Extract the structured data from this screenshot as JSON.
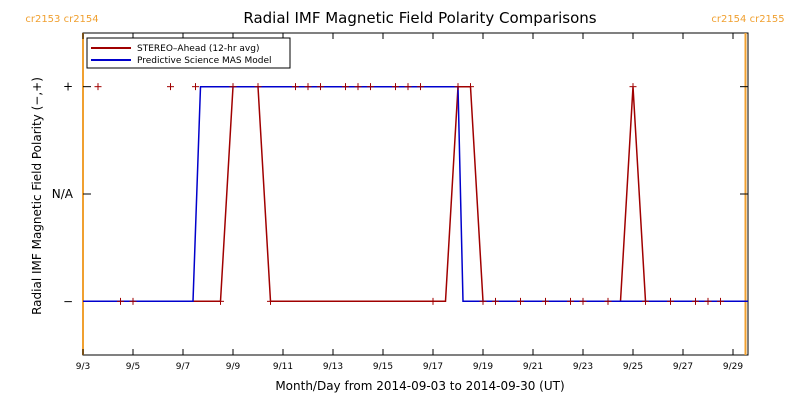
{
  "chart_data": {
    "type": "line",
    "title": "Radial IMF Magnetic Field Polarity Comparisons",
    "xlabel": "Month/Day from 2014-09-03 to 2014-09-30 (UT)",
    "ylabel": "Radial IMF Magnetic Field Polarity (−,+)",
    "xlim": [
      0,
      26.6
    ],
    "ylim": [
      -1.5,
      1.5
    ],
    "x_tick_values": [
      0,
      2,
      4,
      6,
      8,
      10,
      12,
      14,
      16,
      18,
      20,
      22,
      24,
      26
    ],
    "x_tick_labels": [
      "9/3",
      "9/5",
      "9/7",
      "9/9",
      "9/11",
      "9/13",
      "9/15",
      "9/17",
      "9/19",
      "9/21",
      "9/23",
      "9/25",
      "9/27",
      "9/29"
    ],
    "y_ticks": [
      {
        "value": 1,
        "label": "+"
      },
      {
        "value": 0,
        "label": "N/A"
      },
      {
        "value": -1,
        "label": "−"
      }
    ],
    "carrington_markers": [
      {
        "x": 0,
        "left_label": "cr2153",
        "right_label": "cr2154"
      },
      {
        "x": 26.5,
        "left_label": "cr2154",
        "right_label": "cr2155"
      }
    ],
    "series": [
      {
        "name": "STEREO–Ahead (12-hr avg)",
        "color": "#a00000",
        "line": [
          [
            0,
            -1
          ],
          [
            5.0,
            -1
          ],
          [
            5.5,
            -1
          ],
          [
            6.0,
            1
          ],
          [
            6.5,
            1
          ],
          [
            7.0,
            1
          ],
          [
            7.5,
            -1
          ],
          [
            14.0,
            -1
          ],
          [
            14.5,
            -1
          ],
          [
            15.0,
            1
          ],
          [
            15.5,
            1
          ],
          [
            16.0,
            -1
          ],
          [
            16.5,
            -1
          ],
          [
            21.5,
            -1
          ],
          [
            22.0,
            1
          ],
          [
            22.5,
            -1
          ],
          [
            26.6,
            -1
          ]
        ],
        "points": [
          [
            0.6,
            1
          ],
          [
            1.5,
            -1
          ],
          [
            2.0,
            -1
          ],
          [
            3.5,
            1
          ],
          [
            4.5,
            1
          ],
          [
            5.5,
            -1
          ],
          [
            6.0,
            1
          ],
          [
            7.0,
            1
          ],
          [
            7.5,
            -1
          ],
          [
            8.5,
            1
          ],
          [
            9.0,
            1
          ],
          [
            9.5,
            1
          ],
          [
            10.5,
            1
          ],
          [
            11.0,
            1
          ],
          [
            11.5,
            1
          ],
          [
            12.5,
            1
          ],
          [
            13.0,
            1
          ],
          [
            13.5,
            1
          ],
          [
            14.0,
            -1
          ],
          [
            15.0,
            1
          ],
          [
            15.5,
            1
          ],
          [
            16.0,
            -1
          ],
          [
            16.5,
            -1
          ],
          [
            17.5,
            -1
          ],
          [
            18.5,
            -1
          ],
          [
            19.5,
            -1
          ],
          [
            20.0,
            -1
          ],
          [
            21.0,
            -1
          ],
          [
            22.0,
            1
          ],
          [
            22.5,
            -1
          ],
          [
            23.5,
            -1
          ],
          [
            24.5,
            -1
          ],
          [
            25.0,
            -1
          ],
          [
            25.5,
            -1
          ]
        ]
      },
      {
        "name": "Predictive Science MAS Model",
        "color": "#0000cc",
        "line": [
          [
            0,
            -1
          ],
          [
            4.4,
            -1
          ],
          [
            4.7,
            1
          ],
          [
            15.0,
            1
          ],
          [
            15.2,
            -1
          ],
          [
            26.6,
            -1
          ]
        ]
      }
    ],
    "legend_position": "top-left",
    "grid": false
  }
}
